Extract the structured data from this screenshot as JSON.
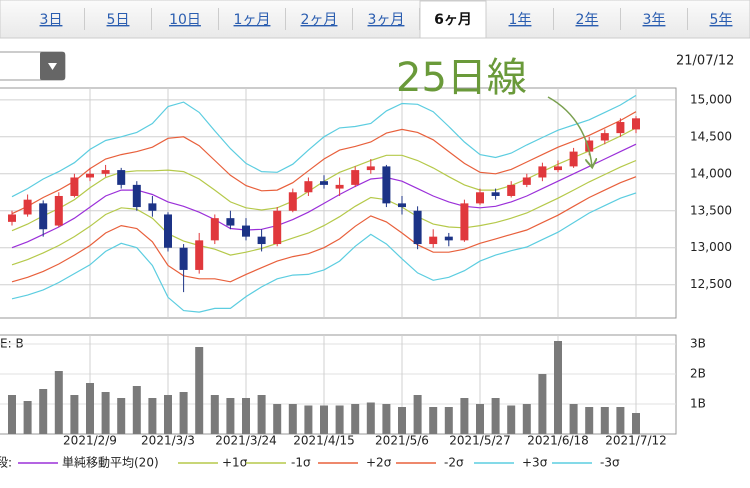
{
  "tabs": [
    {
      "label": "3日"
    },
    {
      "label": "5日"
    },
    {
      "label": "10日"
    },
    {
      "label": "1ヶ月"
    },
    {
      "label": "2ヶ月"
    },
    {
      "label": "3ヶ月"
    },
    {
      "label": "6ヶ月",
      "active": true
    },
    {
      "label": "1年"
    },
    {
      "label": "2年"
    },
    {
      "label": "3年"
    },
    {
      "label": "5年"
    }
  ],
  "date": "21/07/12",
  "chart_data": [
    {
      "type": "candlestick",
      "annotation": "25日線",
      "up_color": "#e0383c",
      "down_color": "#1c3386",
      "open": [
        13350,
        13450,
        13600,
        13300,
        13700,
        13950,
        14000,
        14050,
        13850,
        13600,
        13450,
        13000,
        12700,
        13100,
        13400,
        13300,
        13150,
        13050,
        13500,
        13750,
        13900,
        13800,
        13850,
        14050,
        14100,
        13600,
        13500,
        13050,
        13150,
        13100,
        13600,
        13750,
        13700,
        13850,
        13950,
        14050,
        14100,
        14300,
        14450,
        14550,
        14600
      ],
      "high": [
        13500,
        13720,
        13640,
        13750,
        14000,
        14080,
        14120,
        14080,
        13900,
        13700,
        13480,
        13050,
        13200,
        13450,
        13500,
        13400,
        13250,
        13550,
        13800,
        13950,
        13980,
        13950,
        14100,
        14200,
        14120,
        13700,
        13560,
        13250,
        13200,
        13650,
        13800,
        13800,
        13900,
        14000,
        14150,
        14180,
        14350,
        14500,
        14600,
        14750,
        14780
      ],
      "low": [
        13300,
        13420,
        13150,
        13280,
        13680,
        13900,
        13960,
        13800,
        13500,
        13420,
        12950,
        12400,
        12650,
        13050,
        13250,
        13100,
        12950,
        13020,
        13480,
        13700,
        13800,
        13700,
        13820,
        14000,
        13550,
        13450,
        12980,
        13000,
        13020,
        13080,
        13580,
        13650,
        13680,
        13820,
        13900,
        14020,
        14080,
        14250,
        14400,
        14500,
        14550
      ],
      "close": [
        13450,
        13650,
        13250,
        13700,
        13950,
        14000,
        14050,
        13850,
        13550,
        13500,
        13000,
        12700,
        13100,
        13400,
        13300,
        13150,
        13050,
        13500,
        13750,
        13900,
        13850,
        13850,
        14050,
        14100,
        13600,
        13550,
        13050,
        13150,
        13100,
        13600,
        13750,
        13700,
        13850,
        13950,
        14100,
        14100,
        14300,
        14450,
        14550,
        14700,
        14750
      ],
      "series": [
        {
          "name": "単純移動平均(20)",
          "color": "#9b30d9",
          "values": [
            13000,
            13080,
            13180,
            13280,
            13400,
            13550,
            13700,
            13780,
            13780,
            13720,
            13620,
            13560,
            13480,
            13380,
            13260,
            13240,
            13250,
            13300,
            13380,
            13480,
            13600,
            13720,
            13830,
            13930,
            13950,
            13900,
            13800,
            13700,
            13620,
            13560,
            13540,
            13560,
            13620,
            13700,
            13800,
            13900,
            14000,
            14100,
            14200,
            14300,
            14400
          ]
        },
        {
          "name": "+1σ",
          "color": "#b5c94a",
          "values": [
            13230,
            13320,
            13430,
            13530,
            13650,
            13810,
            13950,
            14020,
            14040,
            14040,
            14050,
            14030,
            13930,
            13780,
            13620,
            13540,
            13510,
            13540,
            13630,
            13760,
            13900,
            14020,
            14100,
            14180,
            14250,
            14250,
            14180,
            14080,
            13960,
            13850,
            13780,
            13780,
            13840,
            13930,
            14030,
            14130,
            14220,
            14310,
            14410,
            14510,
            14620
          ]
        },
        {
          "name": "-1σ",
          "color": "#b5c94a",
          "values": [
            12770,
            12840,
            12930,
            13030,
            13150,
            13290,
            13450,
            13540,
            13520,
            13400,
            13190,
            13090,
            13030,
            12980,
            12900,
            12940,
            12990,
            13060,
            13130,
            13200,
            13300,
            13420,
            13560,
            13680,
            13650,
            13550,
            13420,
            13320,
            13280,
            13270,
            13300,
            13340,
            13400,
            13470,
            13570,
            13670,
            13780,
            13890,
            13990,
            14090,
            14180
          ]
        },
        {
          "name": "+2σ",
          "color": "#e8603c",
          "values": [
            13460,
            13560,
            13680,
            13780,
            13900,
            14070,
            14200,
            14260,
            14300,
            14360,
            14480,
            14500,
            14380,
            14180,
            13980,
            13840,
            13770,
            13780,
            13880,
            14040,
            14200,
            14320,
            14370,
            14430,
            14550,
            14600,
            14560,
            14460,
            14300,
            14140,
            14020,
            14000,
            14060,
            14160,
            14260,
            14360,
            14440,
            14520,
            14620,
            14720,
            14840
          ]
        },
        {
          "name": "-2σ",
          "color": "#e8603c",
          "values": [
            12540,
            12600,
            12680,
            12780,
            12900,
            13030,
            13200,
            13300,
            13260,
            13080,
            12760,
            12620,
            12580,
            12580,
            12540,
            12640,
            12730,
            12820,
            12880,
            12920,
            13000,
            13120,
            13290,
            13430,
            13350,
            13200,
            13040,
            12940,
            12940,
            12980,
            13060,
            13120,
            13180,
            13240,
            13340,
            13440,
            13560,
            13680,
            13780,
            13880,
            13960
          ]
        },
        {
          "name": "+3σ",
          "color": "#5ccde0",
          "values": [
            13690,
            13800,
            13930,
            14030,
            14150,
            14330,
            14450,
            14500,
            14560,
            14680,
            14910,
            14970,
            14830,
            14580,
            14340,
            14140,
            14030,
            14020,
            14130,
            14320,
            14500,
            14620,
            14640,
            14680,
            14850,
            14950,
            14940,
            14840,
            14640,
            14430,
            14260,
            14220,
            14280,
            14390,
            14490,
            14590,
            14660,
            14730,
            14830,
            14930,
            15060
          ]
        },
        {
          "name": "-3σ",
          "color": "#5ccde0",
          "values": [
            12310,
            12360,
            12430,
            12530,
            12650,
            12770,
            12950,
            13060,
            13000,
            12760,
            12330,
            12150,
            12130,
            12180,
            12180,
            12340,
            12470,
            12580,
            12630,
            12640,
            12700,
            12820,
            13020,
            13180,
            13050,
            12850,
            12660,
            12560,
            12600,
            12690,
            12820,
            12900,
            12960,
            13010,
            13110,
            13210,
            13340,
            13470,
            13570,
            13670,
            13740
          ]
        }
      ],
      "legend_title": "段:",
      "ylim": [
        12050,
        15160
      ],
      "yticks": [
        {
          "value": 12500,
          "label": "12,500"
        },
        {
          "value": 13000,
          "label": "13,000"
        },
        {
          "value": 13500,
          "label": "13,500"
        },
        {
          "value": 14000,
          "label": "14,000"
        },
        {
          "value": 14500,
          "label": "14,500"
        },
        {
          "value": 15000,
          "label": "15,000"
        }
      ],
      "grid": true
    },
    {
      "type": "bar",
      "ylabel": "E: B",
      "color": "#7a7a7a",
      "categories": [
        null,
        null,
        null,
        null,
        null,
        "2021/2/9",
        null,
        null,
        null,
        null,
        "2021/3/3",
        null,
        null,
        null,
        null,
        "2021/3/24",
        null,
        null,
        null,
        null,
        "2021/4/15",
        null,
        null,
        null,
        null,
        "2021/5/6",
        null,
        null,
        null,
        null,
        "2021/5/27",
        null,
        null,
        null,
        null,
        "2021/6/18",
        null,
        null,
        null,
        null,
        "2021/7/12"
      ],
      "values": [
        1.3,
        1.1,
        1.5,
        2.1,
        1.3,
        1.7,
        1.4,
        1.2,
        1.6,
        1.2,
        1.3,
        1.4,
        2.9,
        1.3,
        1.2,
        1.2,
        1.3,
        1.0,
        1.0,
        0.95,
        0.95,
        0.95,
        1.0,
        1.05,
        1.0,
        0.9,
        1.3,
        0.9,
        0.9,
        1.2,
        1.0,
        1.2,
        0.95,
        1.0,
        2.0,
        3.1,
        1.0,
        0.9,
        0.9,
        0.9,
        0.7
      ],
      "ylim": [
        0,
        3.3
      ],
      "yticks": [
        {
          "value": 1,
          "label": "1B"
        },
        {
          "value": 2,
          "label": "2B"
        },
        {
          "value": 3,
          "label": "3B"
        }
      ],
      "grid": true
    }
  ]
}
